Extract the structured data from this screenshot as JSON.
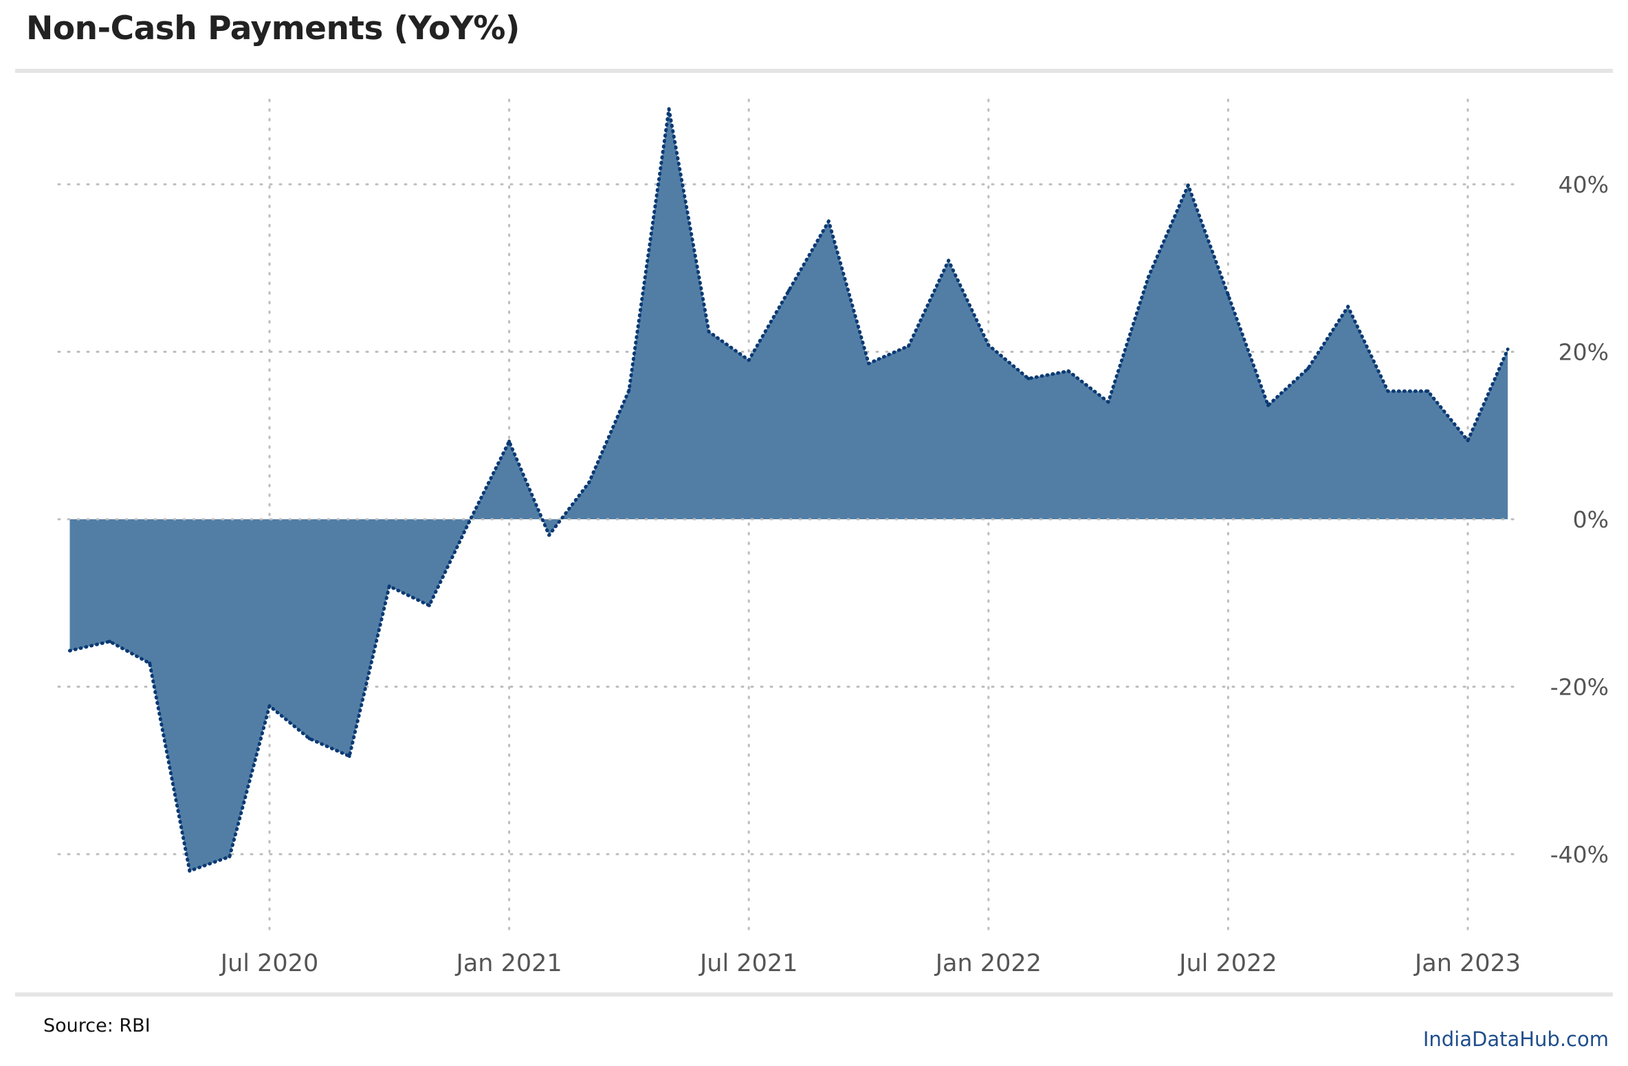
{
  "header": {
    "title": "Non-Cash Payments (YoY%)"
  },
  "footer": {
    "source": "Source: RBI",
    "brand": "IndiaDataHub.com"
  },
  "colors": {
    "area": "#527ea6",
    "line": "#0b3a73",
    "grid": "#bdbdbd"
  },
  "chart_data": {
    "type": "area",
    "title": "Non-Cash Payments (YoY%)",
    "xlabel": "",
    "ylabel": "",
    "ylim": [
      -50,
      50
    ],
    "y_ticks": [
      -40,
      -20,
      0,
      20,
      40
    ],
    "y_tick_labels": [
      "-40%",
      "-20%",
      "0%",
      "20%",
      "40%"
    ],
    "x_tick_labels": [
      "Jul 2020",
      "Jan 2021",
      "Jul 2021",
      "Jan 2022",
      "Jul 2022",
      "Jan 2023"
    ],
    "x_tick_dates": [
      "2020-07",
      "2021-01",
      "2021-07",
      "2022-01",
      "2022-07",
      "2023-01"
    ],
    "grid": true,
    "legend": "none",
    "series": [
      {
        "dates": [
          "2020-02",
          "2020-03",
          "2020-04",
          "2020-05",
          "2020-06",
          "2020-07",
          "2020-08",
          "2020-09",
          "2020-10",
          "2020-11",
          "2020-12",
          "2021-01",
          "2021-02",
          "2021-03",
          "2021-04",
          "2021-05",
          "2021-06",
          "2021-07",
          "2021-08",
          "2021-09",
          "2021-10",
          "2021-11",
          "2021-12",
          "2022-01",
          "2022-02",
          "2022-03",
          "2022-04",
          "2022-05",
          "2022-06",
          "2022-07",
          "2022-08",
          "2022-09",
          "2022-10",
          "2022-11",
          "2022-12",
          "2023-01",
          "2023-02"
        ],
        "values": [
          -15.7,
          -14.6,
          -17.2,
          -42.0,
          -40.3,
          -22.3,
          -26.2,
          -28.3,
          -8.0,
          -10.3,
          -0.3,
          9.3,
          -1.9,
          4.4,
          15.4,
          49.0,
          22.4,
          19.0,
          27.3,
          35.6,
          18.6,
          20.7,
          30.9,
          20.8,
          16.8,
          17.7,
          14.0,
          28.9,
          39.9,
          26.8,
          13.6,
          18.0,
          25.4,
          15.3,
          15.3,
          9.4,
          20.3
        ]
      }
    ]
  }
}
